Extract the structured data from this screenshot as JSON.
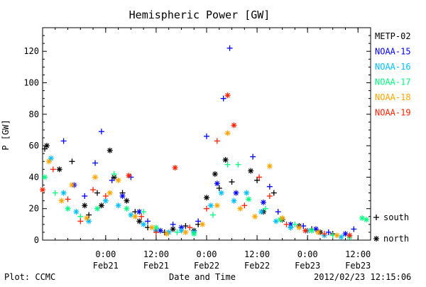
{
  "chart_data": {
    "type": "scatter",
    "title": "Hemispheric Power [GW]",
    "xlabel": "Date and Time",
    "ylabel": "P [GW]",
    "xlim": [
      "2012-02-20 09:00",
      "2012-02-23 15:00"
    ],
    "ylim": [
      0,
      135
    ],
    "yticks": [
      0,
      20,
      40,
      60,
      80,
      100,
      120
    ],
    "xticks": [
      {
        "at": "2012-02-21 00:00",
        "time": "0:00",
        "date": "Feb21"
      },
      {
        "at": "2012-02-21 12:00",
        "time": "12:00",
        "date": "Feb21"
      },
      {
        "at": "2012-02-22 00:00",
        "time": "0:00",
        "date": "Feb22"
      },
      {
        "at": "2012-02-22 12:00",
        "time": "12:00",
        "date": "Feb22"
      },
      {
        "at": "2012-02-23 00:00",
        "time": "0:00",
        "date": "Feb23"
      },
      {
        "at": "2012-02-23 12:00",
        "time": "12:00",
        "date": "Feb23"
      }
    ],
    "marker_legend": [
      {
        "symbol": "+",
        "label": "south"
      },
      {
        "symbol": "*",
        "label": "north"
      }
    ],
    "series": [
      {
        "name": "METP-02",
        "color": "#000000",
        "points": [
          [
            "2012-02-20 09:30",
            58,
            "+"
          ],
          [
            "2012-02-20 10:00",
            60,
            "*"
          ],
          [
            "2012-02-20 13:00",
            45,
            "*"
          ],
          [
            "2012-02-20 16:00",
            50,
            "+"
          ],
          [
            "2012-02-20 19:00",
            22,
            "*"
          ],
          [
            "2012-02-20 20:00",
            16,
            "+"
          ],
          [
            "2012-02-20 22:00",
            30,
            "+"
          ],
          [
            "2012-02-20 23:00",
            22,
            "*"
          ],
          [
            "2012-02-21 01:00",
            57,
            "*"
          ],
          [
            "2012-02-21 02:00",
            40,
            "*"
          ],
          [
            "2012-02-21 04:00",
            30,
            "+"
          ],
          [
            "2012-02-21 05:00",
            25,
            "*"
          ],
          [
            "2012-02-21 07:00",
            18,
            "+"
          ],
          [
            "2012-02-21 08:00",
            12,
            "*"
          ],
          [
            "2012-02-21 10:00",
            8,
            "+"
          ],
          [
            "2012-02-21 12:00",
            6,
            "*"
          ],
          [
            "2012-02-21 14:00",
            5,
            "+"
          ],
          [
            "2012-02-21 16:00",
            7,
            "*"
          ],
          [
            "2012-02-21 19:00",
            9,
            "+"
          ],
          [
            "2012-02-21 21:00",
            6,
            "*"
          ],
          [
            "2012-02-21 22:00",
            10,
            "+"
          ],
          [
            "2012-02-22 00:00",
            27,
            "*"
          ],
          [
            "2012-02-22 02:00",
            42,
            "*"
          ],
          [
            "2012-02-22 03:00",
            33,
            "+"
          ],
          [
            "2012-02-22 04:30",
            51,
            "*"
          ],
          [
            "2012-02-22 06:00",
            37,
            "+"
          ],
          [
            "2012-02-22 10:30",
            44,
            "*"
          ],
          [
            "2012-02-22 12:00",
            38,
            "+"
          ],
          [
            "2012-02-22 13:30",
            18,
            "*"
          ],
          [
            "2012-02-22 16:00",
            30,
            "+"
          ],
          [
            "2012-02-22 18:00",
            13,
            "*"
          ],
          [
            "2012-02-22 20:00",
            8,
            "+"
          ],
          [
            "2012-02-22 22:00",
            9,
            "*"
          ],
          [
            "2012-02-23 01:00",
            7,
            "+"
          ],
          [
            "2012-02-23 03:00",
            5,
            "*"
          ],
          [
            "2012-02-23 06:00",
            4,
            "+"
          ]
        ]
      },
      {
        "name": "NOAA-15",
        "color": "#0000ff",
        "points": [
          [
            "2012-02-20 14:00",
            63,
            "+"
          ],
          [
            "2012-02-20 16:30",
            35,
            "*"
          ],
          [
            "2012-02-20 19:00",
            28,
            "+"
          ],
          [
            "2012-02-20 21:30",
            49,
            "+"
          ],
          [
            "2012-02-20 23:00",
            69,
            "+"
          ],
          [
            "2012-02-21 01:30",
            38,
            "+"
          ],
          [
            "2012-02-21 04:00",
            28,
            "*"
          ],
          [
            "2012-02-21 06:00",
            40,
            "+"
          ],
          [
            "2012-02-21 08:00",
            18,
            "*"
          ],
          [
            "2012-02-21 10:00",
            12,
            "+"
          ],
          [
            "2012-02-21 13:00",
            6,
            "*"
          ],
          [
            "2012-02-21 16:00",
            10,
            "+"
          ],
          [
            "2012-02-21 18:00",
            8,
            "*"
          ],
          [
            "2012-02-21 22:00",
            12,
            "+"
          ],
          [
            "2012-02-22 00:00",
            66,
            "+"
          ],
          [
            "2012-02-22 02:30",
            36,
            "*"
          ],
          [
            "2012-02-22 04:00",
            90,
            "+"
          ],
          [
            "2012-02-22 05:30",
            122,
            "+"
          ],
          [
            "2012-02-22 07:00",
            30,
            "*"
          ],
          [
            "2012-02-22 11:00",
            53,
            "+"
          ],
          [
            "2012-02-22 13:30",
            24,
            "*"
          ],
          [
            "2012-02-22 15:00",
            34,
            "+"
          ],
          [
            "2012-02-22 17:00",
            18,
            "+"
          ],
          [
            "2012-02-22 20:00",
            10,
            "*"
          ],
          [
            "2012-02-22 23:00",
            9,
            "+"
          ],
          [
            "2012-02-23 02:00",
            7,
            "*"
          ],
          [
            "2012-02-23 05:00",
            5,
            "+"
          ],
          [
            "2012-02-23 09:00",
            4,
            "*"
          ],
          [
            "2012-02-23 11:00",
            7,
            "+"
          ]
        ]
      },
      {
        "name": "NOAA-16",
        "color": "#00bfff",
        "points": [
          [
            "2012-02-20 11:00",
            52,
            "*"
          ],
          [
            "2012-02-20 14:00",
            30,
            "*"
          ],
          [
            "2012-02-20 17:00",
            18,
            "*"
          ],
          [
            "2012-02-20 20:00",
            12,
            "*"
          ],
          [
            "2012-02-21 00:00",
            25,
            "*"
          ],
          [
            "2012-02-21 03:00",
            22,
            "*"
          ],
          [
            "2012-02-21 06:00",
            16,
            "*"
          ],
          [
            "2012-02-21 09:00",
            10,
            "*"
          ],
          [
            "2012-02-21 12:00",
            6,
            "*"
          ],
          [
            "2012-02-21 15:00",
            5,
            "*"
          ],
          [
            "2012-02-21 18:00",
            6,
            "*"
          ],
          [
            "2012-02-21 21:00",
            5,
            "*"
          ],
          [
            "2012-02-22 01:00",
            22,
            "*"
          ],
          [
            "2012-02-22 03:30",
            30,
            "*"
          ],
          [
            "2012-02-22 06:30",
            25,
            "*"
          ],
          [
            "2012-02-22 09:30",
            30,
            "*"
          ],
          [
            "2012-02-22 13:00",
            18,
            "*"
          ],
          [
            "2012-02-22 16:30",
            12,
            "*"
          ],
          [
            "2012-02-22 20:00",
            8,
            "*"
          ],
          [
            "2012-02-23 00:00",
            6,
            "*"
          ],
          [
            "2012-02-23 04:00",
            3,
            "*"
          ],
          [
            "2012-02-23 08:00",
            2,
            "*"
          ]
        ]
      },
      {
        "name": "NOAA-17",
        "color": "#00ff7f",
        "points": [
          [
            "2012-02-20 09:30",
            40,
            "*"
          ],
          [
            "2012-02-20 12:00",
            30,
            "+"
          ],
          [
            "2012-02-20 15:00",
            20,
            "*"
          ],
          [
            "2012-02-20 18:00",
            15,
            "+"
          ],
          [
            "2012-02-20 22:00",
            20,
            "*"
          ],
          [
            "2012-02-21 02:00",
            42,
            "+"
          ],
          [
            "2012-02-21 05:00",
            20,
            "*"
          ],
          [
            "2012-02-21 09:00",
            18,
            "+"
          ],
          [
            "2012-02-21 12:00",
            8,
            "*"
          ],
          [
            "2012-02-21 17:00",
            5,
            "+"
          ],
          [
            "2012-02-21 21:00",
            4,
            "*"
          ],
          [
            "2012-02-22 01:30",
            16,
            "+"
          ],
          [
            "2012-02-22 05:00",
            48,
            "+"
          ],
          [
            "2012-02-22 07:30",
            48,
            "+"
          ],
          [
            "2012-02-22 10:00",
            26,
            "*"
          ],
          [
            "2012-02-22 14:00",
            20,
            "+"
          ],
          [
            "2012-02-22 17:30",
            13,
            "*"
          ],
          [
            "2012-02-22 21:00",
            10,
            "+"
          ],
          [
            "2012-02-23 01:00",
            6,
            "*"
          ],
          [
            "2012-02-23 06:00",
            3,
            "+"
          ],
          [
            "2012-02-23 10:00",
            2,
            "*"
          ],
          [
            "2012-02-23 13:00",
            14,
            "*"
          ],
          [
            "2012-02-23 14:00",
            13,
            "*"
          ]
        ]
      },
      {
        "name": "NOAA-18",
        "color": "#ffa500",
        "points": [
          [
            "2012-02-20 10:30",
            50,
            "*"
          ],
          [
            "2012-02-20 13:30",
            25,
            "*"
          ],
          [
            "2012-02-20 16:00",
            35,
            "*"
          ],
          [
            "2012-02-20 19:30",
            14,
            "*"
          ],
          [
            "2012-02-20 21:30",
            40,
            "*"
          ],
          [
            "2012-02-21 01:00",
            30,
            "*"
          ],
          [
            "2012-02-21 03:00",
            38,
            "*"
          ],
          [
            "2012-02-21 07:00",
            15,
            "*"
          ],
          [
            "2012-02-21 11:00",
            8,
            "*"
          ],
          [
            "2012-02-21 14:30",
            4,
            "*"
          ],
          [
            "2012-02-21 19:00",
            5,
            "*"
          ],
          [
            "2012-02-21 23:00",
            10,
            "*"
          ],
          [
            "2012-02-22 02:30",
            22,
            "*"
          ],
          [
            "2012-02-22 05:00",
            68,
            "*"
          ],
          [
            "2012-02-22 08:00",
            20,
            "*"
          ],
          [
            "2012-02-22 11:30",
            15,
            "*"
          ],
          [
            "2012-02-22 15:00",
            47,
            "*"
          ],
          [
            "2012-02-22 18:00",
            14,
            "*"
          ],
          [
            "2012-02-22 22:00",
            8,
            "*"
          ],
          [
            "2012-02-23 02:30",
            5,
            "*"
          ],
          [
            "2012-02-23 07:00",
            3,
            "*"
          ]
        ]
      },
      {
        "name": "NOAA-19",
        "color": "#ff2000",
        "points": [
          [
            "2012-02-20 09:00",
            32,
            "*"
          ],
          [
            "2012-02-20 11:30",
            45,
            "+"
          ],
          [
            "2012-02-20 15:00",
            26,
            "+"
          ],
          [
            "2012-02-20 18:00",
            12,
            "+"
          ],
          [
            "2012-02-20 21:00",
            32,
            "+"
          ],
          [
            "2012-02-21 00:00",
            28,
            "+"
          ],
          [
            "2012-02-21 05:30",
            41,
            "*"
          ],
          [
            "2012-02-21 08:30",
            15,
            "+"
          ],
          [
            "2012-02-21 12:00",
            5,
            "+"
          ],
          [
            "2012-02-21 16:30",
            46,
            "*"
          ],
          [
            "2012-02-21 20:00",
            8,
            "+"
          ],
          [
            "2012-02-22 00:00",
            20,
            "+"
          ],
          [
            "2012-02-22 02:30",
            63,
            "+"
          ],
          [
            "2012-02-22 05:00",
            92,
            "*"
          ],
          [
            "2012-02-22 06:30",
            73,
            "*"
          ],
          [
            "2012-02-22 09:00",
            22,
            "+"
          ],
          [
            "2012-02-22 12:30",
            40,
            "+"
          ],
          [
            "2012-02-22 15:00",
            28,
            "+"
          ],
          [
            "2012-02-22 19:00",
            10,
            "+"
          ],
          [
            "2012-02-22 23:30",
            6,
            "*"
          ],
          [
            "2012-02-23 04:00",
            4,
            "+"
          ],
          [
            "2012-02-23 10:00",
            3,
            "*"
          ]
        ]
      }
    ]
  },
  "footer": {
    "plot_credit": "Plot: CCMC",
    "timestamp": "2012/02/23 12:15:06"
  }
}
